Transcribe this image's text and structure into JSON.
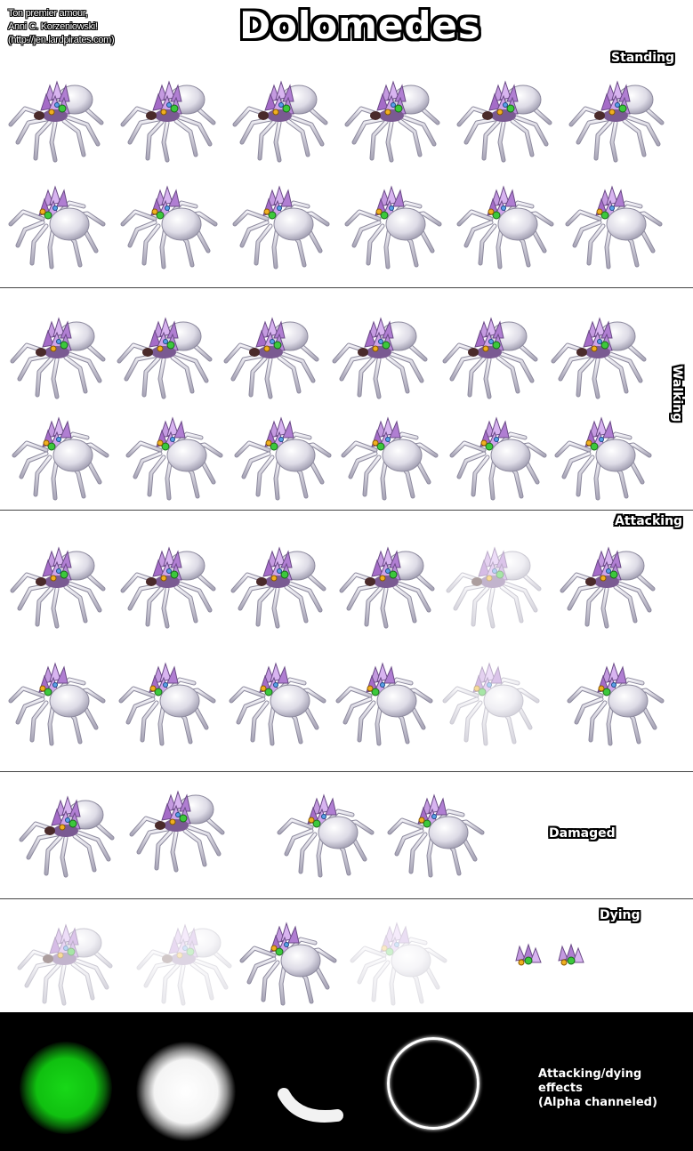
{
  "credits": {
    "line1": "Ton premier amour,",
    "line2": "Anni C. Korzeniowski!",
    "line3": "(http://jen.lardpirates.com)"
  },
  "title": "Dolomedes",
  "sections": {
    "standing": "Standing",
    "walking": "Walking",
    "attacking": "Attacking",
    "damaged": "Damaged",
    "dying": "Dying"
  },
  "effects": {
    "caption_line1": "Attacking/dying",
    "caption_line2": "effects",
    "caption_line3": "(Alpha channeled)"
  },
  "colors": {
    "background": "#ffffff",
    "effects_panel": "#000000",
    "effect_green": "#18d818",
    "crystal_purple": "#b98ad8",
    "spider_body": "#e4e2ee"
  }
}
